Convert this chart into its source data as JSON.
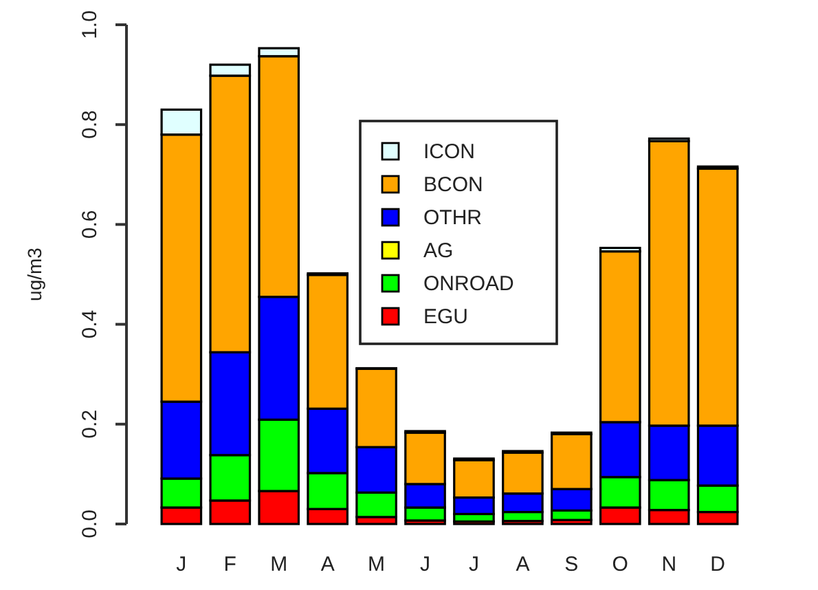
{
  "chart_data": {
    "type": "bar",
    "stacked": true,
    "ylabel": "ug/m3",
    "categories": [
      "J",
      "F",
      "M",
      "A",
      "M",
      "J",
      "J",
      "A",
      "S",
      "O",
      "N",
      "D"
    ],
    "series": [
      {
        "name": "EGU",
        "color": "#ff0000",
        "values": [
          0.033,
          0.047,
          0.066,
          0.03,
          0.014,
          0.007,
          0.005,
          0.006,
          0.008,
          0.033,
          0.028,
          0.024
        ]
      },
      {
        "name": "ONROAD",
        "color": "#00ff00",
        "values": [
          0.058,
          0.091,
          0.143,
          0.072,
          0.049,
          0.026,
          0.015,
          0.018,
          0.019,
          0.061,
          0.06,
          0.053
        ]
      },
      {
        "name": "AG",
        "color": "#ffff00",
        "values": [
          0,
          0,
          0,
          0,
          0,
          0,
          0,
          0,
          0,
          0,
          0,
          0
        ]
      },
      {
        "name": "OTHR",
        "color": "#0000ff",
        "values": [
          0.154,
          0.206,
          0.246,
          0.129,
          0.091,
          0.047,
          0.033,
          0.037,
          0.043,
          0.11,
          0.109,
          0.12
        ]
      },
      {
        "name": "BCON",
        "color": "#ffa500",
        "values": [
          0.535,
          0.554,
          0.482,
          0.268,
          0.157,
          0.103,
          0.075,
          0.082,
          0.11,
          0.342,
          0.57,
          0.515
        ]
      },
      {
        "name": "ICON",
        "color": "#e0ffff",
        "values": [
          0.05,
          0.022,
          0.016,
          0.003,
          0.001,
          0.003,
          0.003,
          0.003,
          0.003,
          0.007,
          0.005,
          0.004
        ]
      }
    ],
    "ylim": [
      0,
      1
    ],
    "yticks": [
      {
        "value": 0,
        "label": "0.0"
      },
      0.2,
      0.4,
      0.6,
      0.8,
      {
        "value": 1,
        "label": "1.0"
      }
    ],
    "grid": false,
    "legend": "top"
  }
}
